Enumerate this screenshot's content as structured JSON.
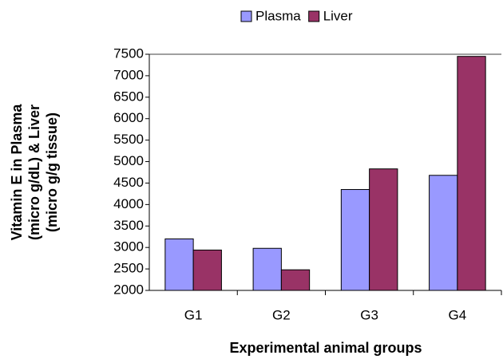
{
  "chart_data": {
    "type": "bar",
    "x_label": "Experimental animal groups",
    "y_label": [
      "Vitamin E in Plasma",
      "(micro g/dL) & Liver",
      "(micro g/g tissue)"
    ],
    "categories": [
      "G1",
      "G2",
      "G3",
      "G4"
    ],
    "series": [
      {
        "name": "Plasma",
        "color": "#9999ff",
        "values": [
          3200,
          2980,
          4350,
          4680
        ]
      },
      {
        "name": "Liver",
        "color": "#993366",
        "values": [
          2940,
          2480,
          4830,
          7450
        ]
      }
    ],
    "ylim": [
      2000,
      7500
    ],
    "yticks": [
      2000,
      2500,
      3000,
      3500,
      4000,
      4500,
      5000,
      5500,
      6000,
      6500,
      7000,
      7500
    ],
    "legend": "top"
  }
}
